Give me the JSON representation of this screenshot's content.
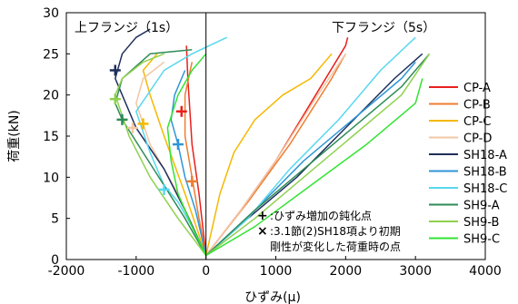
{
  "chart_data": {
    "type": "line",
    "xlabel": "ひずみ(μ)",
    "ylabel": "荷重(kN)",
    "xlim": [
      -2000,
      4000
    ],
    "ylim": [
      0,
      30
    ],
    "xticks": [
      -2000,
      -1000,
      0,
      1000,
      2000,
      3000,
      4000
    ],
    "yticks": [
      0,
      5,
      10,
      15,
      20,
      25,
      30
    ],
    "grid": false,
    "legend": "right",
    "region_labels": {
      "left": "上フランジ（1s）",
      "right": "下フランジ（5s）"
    },
    "annotations": [
      {
        "marker": "+",
        "text": ":ひずみ増加の鈍化点"
      },
      {
        "marker": "×",
        "text": ":3.1節(2)SH18項より初期"
      },
      {
        "marker": "",
        "text": "剛性が変化した荷重時の点"
      }
    ],
    "series": [
      {
        "name": "CP-A",
        "color": "#e8211d",
        "top": [
          [
            0,
            0.5
          ],
          [
            -100,
            8
          ],
          [
            -200,
            14
          ],
          [
            -230,
            18
          ],
          [
            -260,
            22
          ],
          [
            -280,
            26
          ]
        ],
        "bottom": [
          [
            0,
            0.5
          ],
          [
            500,
            6
          ],
          [
            1000,
            12
          ],
          [
            1500,
            19
          ],
          [
            2000,
            26
          ],
          [
            2030,
            27
          ]
        ],
        "marker": [
          -350,
          18
        ]
      },
      {
        "name": "CP-B",
        "color": "#ed7d31",
        "top": [
          [
            0,
            0.5
          ],
          [
            -100,
            5
          ],
          [
            -200,
            10
          ],
          [
            -300,
            15
          ],
          [
            -300,
            20
          ],
          [
            -200,
            24
          ]
        ],
        "bottom": [
          [
            0,
            0.5
          ],
          [
            600,
            7
          ],
          [
            1200,
            14
          ],
          [
            1800,
            22
          ],
          [
            2000,
            25
          ]
        ],
        "marker": [
          -200,
          9.5
        ]
      },
      {
        "name": "CP-C",
        "color": "#f5b800",
        "top": [
          [
            0,
            0.5
          ],
          [
            -300,
            8
          ],
          [
            -600,
            15
          ],
          [
            -800,
            20
          ],
          [
            -900,
            23
          ],
          [
            -700,
            25
          ]
        ],
        "bottom": [
          [
            0,
            0.5
          ],
          [
            200,
            8
          ],
          [
            400,
            13
          ],
          [
            700,
            17
          ],
          [
            1100,
            20
          ],
          [
            1500,
            22
          ],
          [
            1800,
            25
          ]
        ],
        "marker": [
          -900,
          16.5
        ]
      },
      {
        "name": "CP-D",
        "color": "#f2c7a5",
        "top": [
          [
            0,
            0.5
          ],
          [
            -400,
            8
          ],
          [
            -800,
            14
          ],
          [
            -1000,
            19
          ],
          [
            -900,
            22
          ],
          [
            -600,
            24
          ]
        ],
        "bottom": [
          [
            0,
            0.5
          ],
          [
            500,
            6
          ],
          [
            1000,
            12
          ],
          [
            1600,
            20
          ],
          [
            2000,
            25
          ]
        ],
        "marker": [
          -1050,
          16
        ]
      },
      {
        "name": "SH18-A",
        "color": "#1f2f5c",
        "top": [
          [
            0,
            0.5
          ],
          [
            -300,
            6
          ],
          [
            -600,
            11
          ],
          [
            -1000,
            16
          ],
          [
            -1300,
            22
          ],
          [
            -1200,
            25
          ],
          [
            -1000,
            27
          ],
          [
            -800,
            28
          ]
        ],
        "bottom": [
          [
            0,
            0.5
          ],
          [
            600,
            5
          ],
          [
            1300,
            10
          ],
          [
            2000,
            16
          ],
          [
            2700,
            22
          ],
          [
            3100,
            25
          ]
        ],
        "marker": [
          -1300,
          23
        ]
      },
      {
        "name": "SH18-B",
        "color": "#2e96d6",
        "top": [
          [
            0,
            0.5
          ],
          [
            -150,
            6
          ],
          [
            -300,
            10
          ],
          [
            -400,
            14
          ],
          [
            -500,
            17
          ],
          [
            -450,
            20
          ],
          [
            -300,
            23
          ]
        ],
        "bottom": [
          [
            0,
            0.5
          ],
          [
            700,
            6
          ],
          [
            1400,
            12
          ],
          [
            2100,
            17
          ],
          [
            2800,
            22
          ],
          [
            3000,
            24
          ]
        ],
        "marker": [
          -400,
          14
        ]
      },
      {
        "name": "SH18-C",
        "color": "#58d7ee",
        "top": [
          [
            0,
            0.5
          ],
          [
            -200,
            4
          ],
          [
            -400,
            7
          ],
          [
            -600,
            9
          ],
          [
            -800,
            13
          ],
          [
            -1000,
            18
          ],
          [
            -600,
            23
          ],
          [
            -200,
            25
          ],
          [
            300,
            27
          ]
        ],
        "bottom": [
          [
            0,
            0.5
          ],
          [
            600,
            5
          ],
          [
            1200,
            11
          ],
          [
            1900,
            17
          ],
          [
            2500,
            23
          ],
          [
            3000,
            27
          ]
        ],
        "marker": [
          -600,
          8.5
        ]
      },
      {
        "name": "SH9-A",
        "color": "#2e8b57",
        "top": [
          [
            0,
            0.5
          ],
          [
            -300,
            5
          ],
          [
            -600,
            9
          ],
          [
            -900,
            13
          ],
          [
            -1200,
            17
          ],
          [
            -1300,
            19
          ],
          [
            -1200,
            22
          ],
          [
            -800,
            25
          ],
          [
            -200,
            25.5
          ]
        ],
        "bottom": [
          [
            0,
            0.5
          ],
          [
            700,
            6
          ],
          [
            1400,
            11
          ],
          [
            2100,
            16
          ],
          [
            2800,
            21
          ],
          [
            3200,
            25
          ]
        ],
        "marker": [
          -1200,
          17
        ]
      },
      {
        "name": "SH9-B",
        "color": "#8fd14f",
        "top": [
          [
            0,
            0.5
          ],
          [
            -400,
            5
          ],
          [
            -800,
            10
          ],
          [
            -1100,
            15
          ],
          [
            -1300,
            20
          ],
          [
            -1200,
            22
          ],
          [
            -900,
            24
          ],
          [
            -600,
            25
          ]
        ],
        "bottom": [
          [
            0,
            0.5
          ],
          [
            700,
            5
          ],
          [
            1400,
            10
          ],
          [
            2100,
            15
          ],
          [
            2800,
            20
          ],
          [
            3200,
            25
          ]
        ],
        "marker": [
          -1300,
          19.5
        ]
      },
      {
        "name": "SH9-C",
        "color": "#33e333",
        "top": [
          [
            0,
            0.5
          ],
          [
            -200,
            4
          ],
          [
            -400,
            8
          ],
          [
            -500,
            12
          ],
          [
            -550,
            16
          ],
          [
            -400,
            20
          ],
          [
            -200,
            23
          ],
          [
            0,
            25
          ]
        ],
        "bottom": [
          [
            0,
            0.5
          ],
          [
            700,
            4
          ],
          [
            1500,
            9
          ],
          [
            2300,
            14
          ],
          [
            3000,
            19
          ],
          [
            3100,
            22
          ]
        ],
        "marker": null
      }
    ]
  }
}
